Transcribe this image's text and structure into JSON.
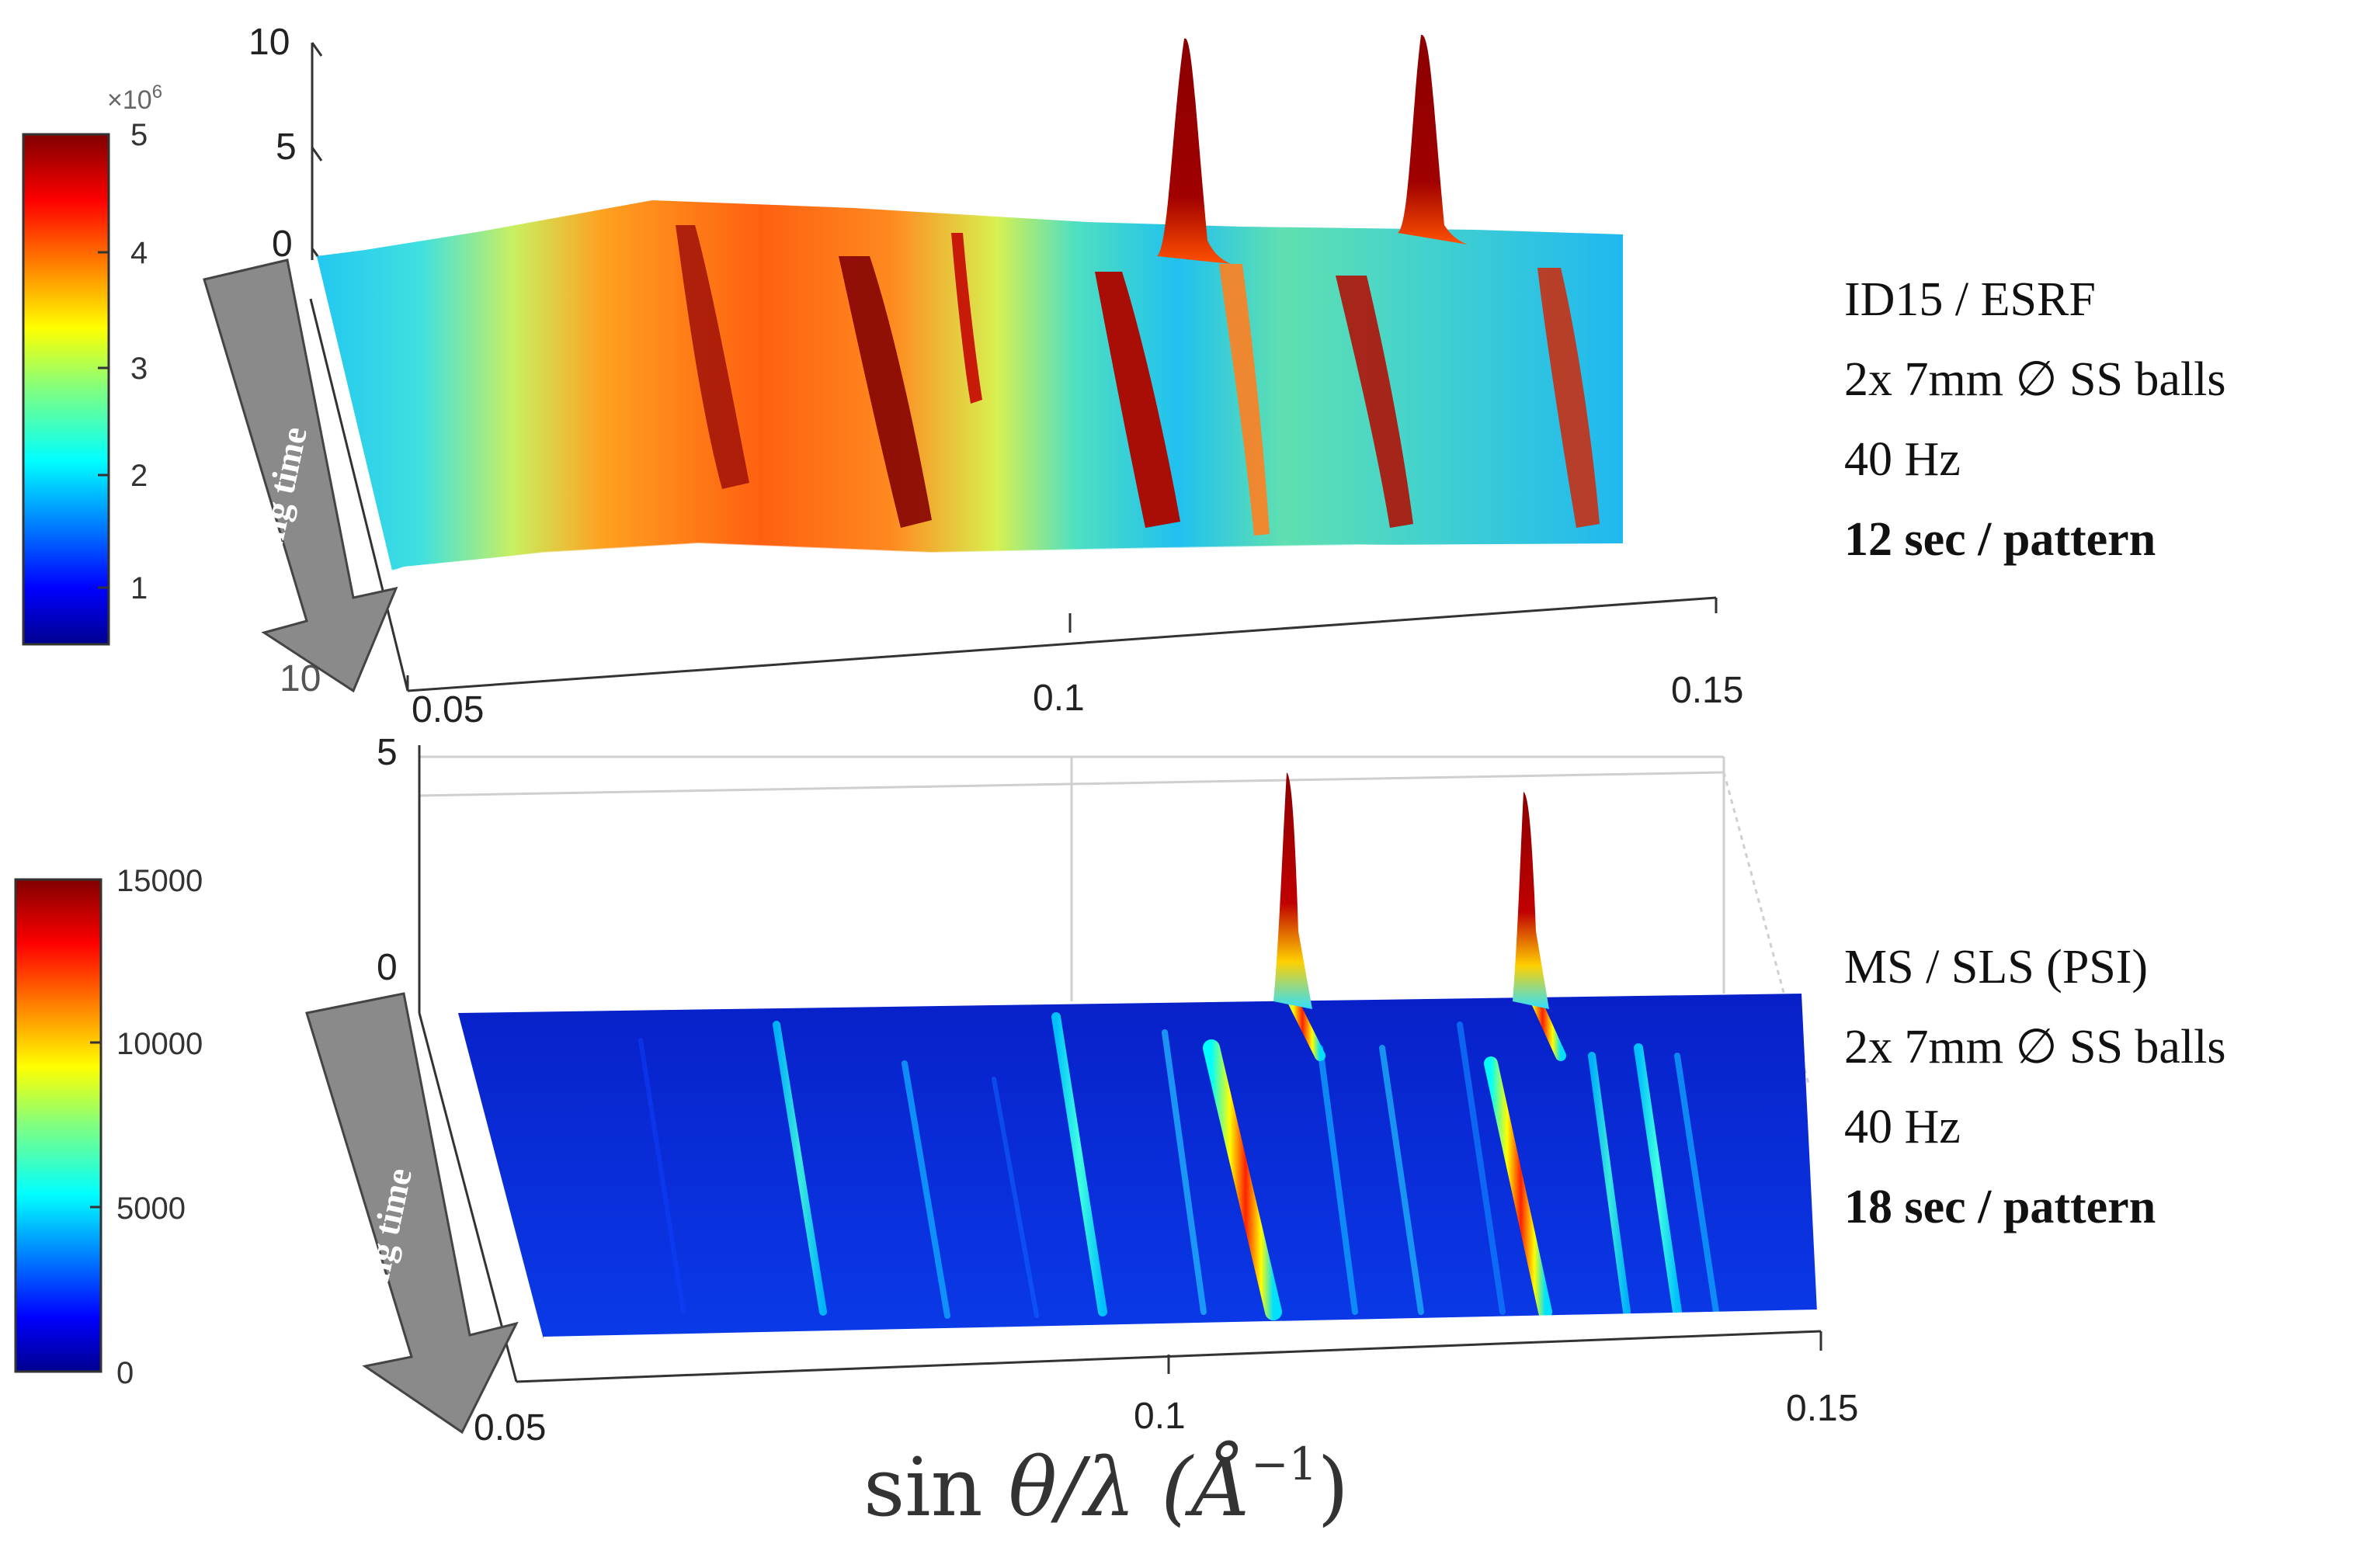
{
  "chart_data": [
    {
      "type": "surface3d",
      "panel": "top",
      "x_ticks": [
        "0.05",
        "0.1",
        "0.15"
      ],
      "x_range": [
        0.05,
        0.15
      ],
      "z_ticks": [
        "0",
        "5",
        "10"
      ],
      "z_range": [
        0,
        10
      ],
      "depth_label": "Milling time",
      "colorbar": {
        "ticks": [
          "1",
          "2",
          "3",
          "4",
          "5"
        ],
        "exponent": "×10",
        "exponent_power": "6",
        "range": [
          0.6,
          5
        ]
      },
      "peaks_sin_theta_over_lambda": [
        0.072,
        0.081,
        0.087,
        0.092,
        0.103,
        0.108,
        0.118,
        0.121,
        0.125,
        0.134
      ],
      "tall_peaks": [
        0.108,
        0.125
      ],
      "annotation": [
        "ID15 / ESRF",
        "2x 7mm ∅ SS balls",
        "40 Hz",
        "12 sec / pattern"
      ]
    },
    {
      "type": "surface3d",
      "panel": "bottom",
      "x_ticks": [
        "0.05",
        "0.1",
        "0.15"
      ],
      "x_range": [
        0.05,
        0.15
      ],
      "z_ticks": [
        "0",
        "5"
      ],
      "z_range": [
        0,
        5
      ],
      "depth_label": "Milling time",
      "colorbar": {
        "ticks": [
          "0",
          "5000",
          "10000",
          "15000"
        ],
        "range": [
          0,
          15000
        ]
      },
      "peaks_sin_theta_over_lambda": [
        0.073,
        0.082,
        0.088,
        0.094,
        0.104,
        0.108,
        0.116,
        0.119,
        0.123,
        0.127,
        0.133
      ],
      "tall_peaks": [
        0.108,
        0.127
      ],
      "annotation": [
        "MS / SLS (PSI)",
        "2x 7mm ∅ SS balls",
        "40 Hz",
        "18 sec / pattern"
      ]
    }
  ],
  "x_axis_label": {
    "prefix": "sin ",
    "theta": "θ",
    "slash_lambda": "/λ (",
    "angstrom": "Å",
    "power": "−1",
    "suffix": ")"
  },
  "hidden_tick": "10",
  "colors": {
    "jet": [
      "#00008f",
      "#0000ff",
      "#0080ff",
      "#00ffff",
      "#80ff80",
      "#ffff00",
      "#ff8000",
      "#ff0000",
      "#800000"
    ],
    "arrow_fill": "#8a8a8a",
    "arrow_stroke": "#444444",
    "axis": "#333333"
  }
}
